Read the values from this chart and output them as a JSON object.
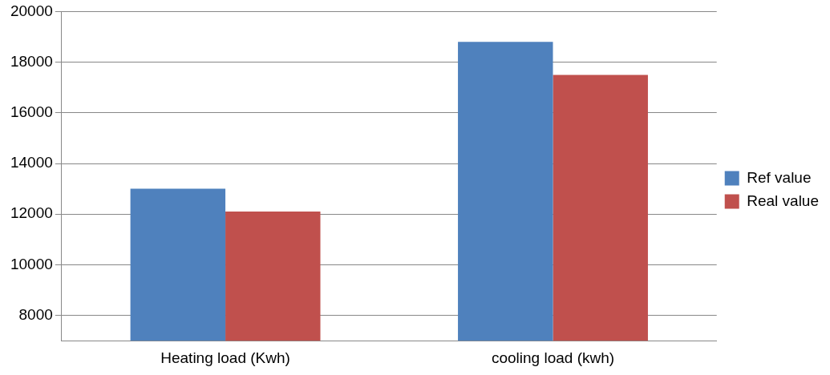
{
  "chart_data": {
    "type": "bar",
    "categories": [
      "Heating load (Kwh)",
      "cooling load (kwh)"
    ],
    "series": [
      {
        "name": "Ref value",
        "color": "#4f81bd",
        "values": [
          13000,
          18800
        ]
      },
      {
        "name": "Real value",
        "color": "#c0504d",
        "values": [
          12100,
          17500
        ]
      }
    ],
    "ylim": [
      7000,
      20000
    ],
    "yticks": [
      8000,
      10000,
      12000,
      14000,
      16000,
      18000,
      20000
    ],
    "grid": "y",
    "legend": "right"
  }
}
